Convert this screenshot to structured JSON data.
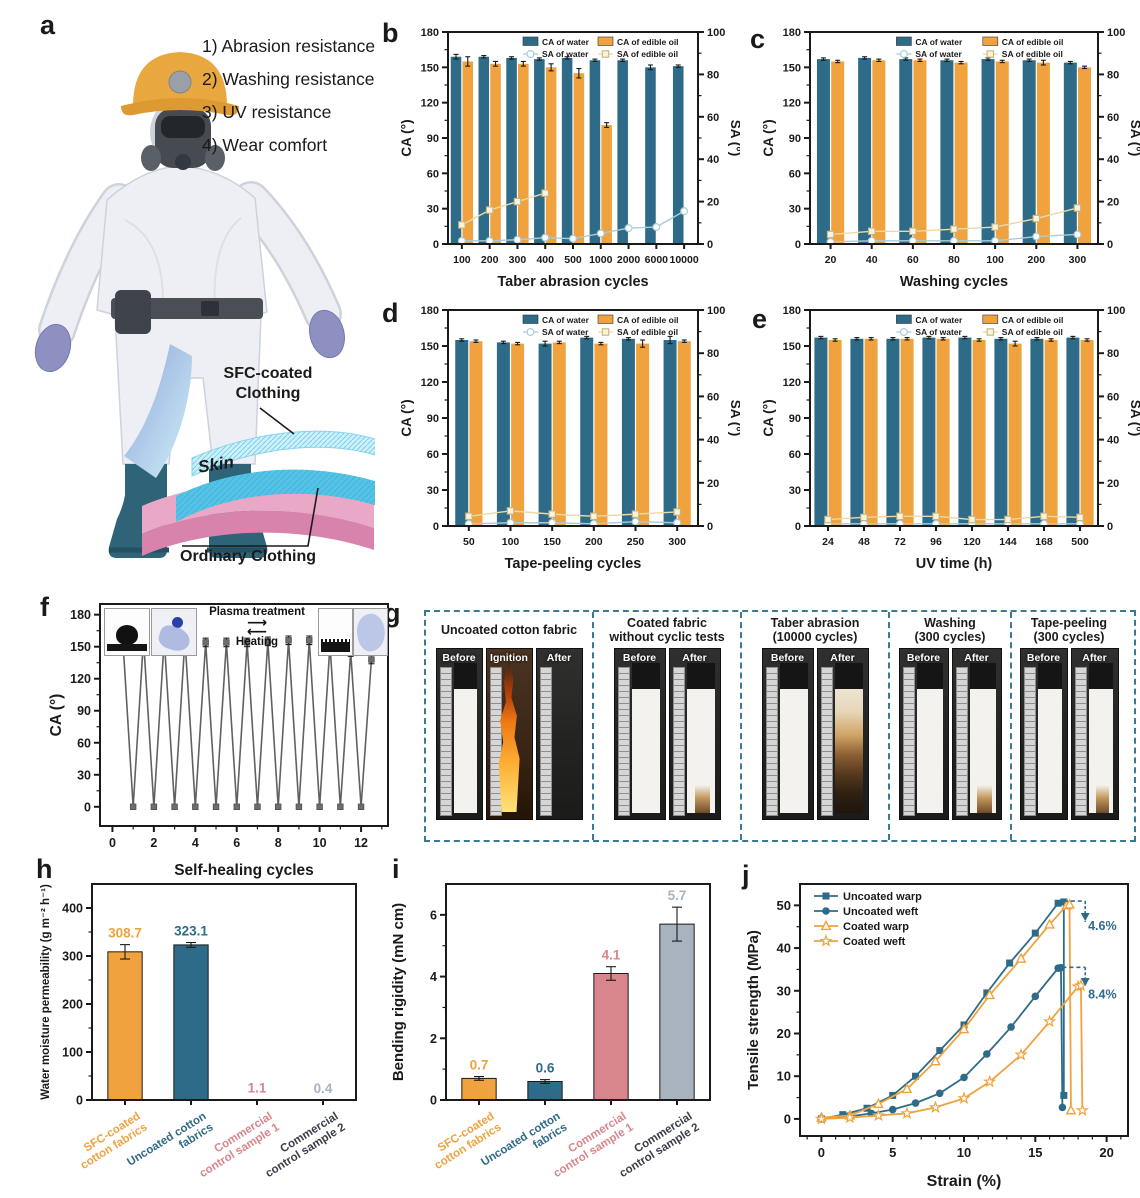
{
  "panel_letters": {
    "a": "a",
    "b": "b",
    "c": "c",
    "d": "d",
    "e": "e",
    "f": "f",
    "g": "g",
    "h": "h",
    "i": "i",
    "j": "j"
  },
  "palette": {
    "teal": "#2E6B88",
    "orange": "#EFA23E",
    "light_teal": "#A9CDD8",
    "pale_line": "#EBD9A9",
    "pale_fill": "#FAF3DC",
    "pale_stroke": "#C8B37E",
    "pink": "#D8868C",
    "gray": "#A9B2BF",
    "slate": "#3A3F48",
    "dark": "#1A1A1A",
    "f_line": "#616161",
    "f_marker": "#6E6E6E",
    "dashed_border": "#3A7A96"
  },
  "panel_a": {
    "requirements": [
      "1) Abrasion resistance",
      "2) Washing resistance",
      "3) UV resistance",
      "4) Wear comfort"
    ],
    "labels": {
      "sfc_line1": "SFC-coated",
      "sfc_line2": "Clothing",
      "skin": "Skin",
      "ordinary": "Ordinary Clothing"
    }
  },
  "panel_f_inset": {
    "top": "Plasma treatment",
    "bottom": "Heating"
  },
  "panel_g": {
    "groups": [
      {
        "title_lines": [
          "Uncoated cotton fabric"
        ],
        "photos": [
          {
            "label": "Before",
            "variant": "fabric-white"
          },
          {
            "label": "Ignition",
            "variant": "flame"
          },
          {
            "label": "After",
            "variant": "burned-empty"
          }
        ]
      },
      {
        "title_lines": [
          "Coated fabric",
          "without cyclic tests"
        ],
        "photos": [
          {
            "label": "Before",
            "variant": "fabric-white"
          },
          {
            "label": "After",
            "variant": "fabric-char"
          }
        ]
      },
      {
        "title_lines": [
          "Taber abrasion",
          "(10000 cycles)"
        ],
        "photos": [
          {
            "label": "Before",
            "variant": "fabric-white"
          },
          {
            "label": "After",
            "variant": "fabric-burnt"
          }
        ]
      },
      {
        "title_lines": [
          "Washing",
          "(300 cycles)"
        ],
        "photos": [
          {
            "label": "Before",
            "variant": "fabric-white"
          },
          {
            "label": "After",
            "variant": "fabric-char"
          }
        ]
      },
      {
        "title_lines": [
          "Tape-peeling",
          "(300 cycles)"
        ],
        "photos": [
          {
            "label": "Before",
            "variant": "fabric-white"
          },
          {
            "label": "After",
            "variant": "fabric-char"
          }
        ]
      }
    ]
  },
  "chart_data": [
    {
      "id": "b",
      "type": "bar",
      "subtype": "dual-axis-bar-line",
      "xlabel": "Taber abrasion cycles",
      "ylabel_left": "CA (°)",
      "ylabel_right": "SA (°)",
      "ylim_left": [
        0,
        180
      ],
      "yticks_left": [
        0,
        30,
        60,
        90,
        120,
        150,
        180
      ],
      "ylim_right": [
        0,
        100
      ],
      "yticks_right": [
        0,
        20,
        40,
        60,
        80,
        100
      ],
      "categories": [
        "100",
        "200",
        "300",
        "400",
        "500",
        "1000",
        "2000",
        "6000",
        "10000"
      ],
      "series_bars": [
        {
          "name": "CA of water",
          "color": "teal",
          "values": [
            159,
            159,
            158,
            157,
            158,
            156,
            156,
            150,
            151
          ],
          "err": [
            2,
            1,
            1,
            1,
            1,
            1,
            1,
            2,
            1
          ]
        },
        {
          "name": "CA of edible oil",
          "color": "orange",
          "values": [
            155,
            153,
            153,
            150,
            145,
            101,
            null,
            null,
            null
          ],
          "err": [
            4,
            2,
            2,
            3,
            4,
            2,
            null,
            null,
            null
          ]
        }
      ],
      "series_lines": [
        {
          "name": "SA of water",
          "color": "light_teal",
          "marker": "circle-open",
          "values": [
            1.5,
            1.5,
            2,
            3,
            2.5,
            5,
            7.5,
            8,
            15.5
          ]
        },
        {
          "name": "SA of edible oil",
          "color": "pale_line",
          "marker": "square-pale",
          "values": [
            9,
            16,
            20,
            24,
            null,
            null,
            null,
            null,
            null
          ]
        }
      ]
    },
    {
      "id": "c",
      "type": "bar",
      "subtype": "dual-axis-bar-line",
      "xlabel": "Washing cycles",
      "ylabel_left": "CA (°)",
      "ylabel_right": "SA (°)",
      "ylim_left": [
        0,
        180
      ],
      "yticks_left": [
        0,
        30,
        60,
        90,
        120,
        150,
        180
      ],
      "ylim_right": [
        0,
        100
      ],
      "yticks_right": [
        0,
        20,
        40,
        60,
        80,
        100
      ],
      "categories": [
        "20",
        "40",
        "60",
        "80",
        "100",
        "200",
        "300"
      ],
      "series_bars": [
        {
          "name": "CA of water",
          "color": "teal",
          "values": [
            157,
            158,
            157,
            156,
            157,
            156,
            154
          ],
          "err": [
            1,
            1,
            1,
            1,
            1,
            1,
            1
          ]
        },
        {
          "name": "CA of edible oil",
          "color": "orange",
          "values": [
            155,
            156,
            156,
            154,
            155,
            154,
            150
          ],
          "err": [
            1,
            1,
            1,
            1,
            1,
            2,
            1
          ]
        }
      ],
      "series_lines": [
        {
          "name": "SA of water",
          "color": "light_teal",
          "marker": "circle-open",
          "values": [
            1,
            1.5,
            1.5,
            1.5,
            1.5,
            3.5,
            4.5
          ]
        },
        {
          "name": "SA of edible oil",
          "color": "pale_line",
          "marker": "square-pale",
          "values": [
            4.5,
            6,
            6,
            7,
            8,
            12,
            17
          ]
        }
      ]
    },
    {
      "id": "d",
      "type": "bar",
      "subtype": "dual-axis-bar-line",
      "xlabel": "Tape-peeling cycles",
      "ylabel_left": "CA (°)",
      "ylabel_right": "SA (°)",
      "ylim_left": [
        0,
        180
      ],
      "yticks_left": [
        0,
        30,
        60,
        90,
        120,
        150,
        180
      ],
      "ylim_right": [
        0,
        100
      ],
      "yticks_right": [
        0,
        20,
        40,
        60,
        80,
        100
      ],
      "categories": [
        "50",
        "100",
        "150",
        "200",
        "250",
        "300"
      ],
      "series_bars": [
        {
          "name": "CA of water",
          "color": "teal",
          "values": [
            155,
            153,
            152,
            157,
            156,
            155
          ],
          "err": [
            1,
            1,
            2,
            1,
            1,
            3
          ]
        },
        {
          "name": "CA of edible oil",
          "color": "orange",
          "values": [
            154,
            152,
            153,
            152,
            152,
            154
          ],
          "err": [
            1,
            1,
            1,
            1,
            3,
            1
          ]
        }
      ],
      "series_lines": [
        {
          "name": "SA of water",
          "color": "light_teal",
          "marker": "circle-open",
          "values": [
            1,
            1.5,
            1.5,
            1,
            2,
            1.5
          ]
        },
        {
          "name": "SA of edible oil",
          "color": "pale_line",
          "marker": "square-pale",
          "values": [
            4.5,
            7,
            5.5,
            4.5,
            5.5,
            6.5
          ]
        }
      ]
    },
    {
      "id": "e",
      "type": "bar",
      "subtype": "dual-axis-bar-line",
      "xlabel": "UV time (h)",
      "ylabel_left": "CA (°)",
      "ylabel_right": "SA (°)",
      "ylim_left": [
        0,
        180
      ],
      "yticks_left": [
        0,
        30,
        60,
        90,
        120,
        150,
        180
      ],
      "ylim_right": [
        0,
        100
      ],
      "yticks_right": [
        0,
        20,
        40,
        60,
        80,
        100
      ],
      "categories": [
        "24",
        "48",
        "72",
        "96",
        "120",
        "144",
        "168",
        "500"
      ],
      "series_bars": [
        {
          "name": "CA of water",
          "color": "teal",
          "values": [
            157,
            156,
            156,
            157,
            157,
            156,
            156,
            157
          ],
          "err": [
            1,
            1,
            1,
            1,
            1,
            1,
            1,
            1
          ]
        },
        {
          "name": "CA of edible oil",
          "color": "orange",
          "values": [
            155,
            156,
            156,
            156,
            155,
            152,
            155,
            155
          ],
          "err": [
            1,
            1,
            1,
            1,
            1,
            2,
            1,
            1
          ]
        }
      ],
      "series_lines": [
        {
          "name": "SA of water",
          "color": "light_teal",
          "marker": "circle-open",
          "values": [
            1,
            1,
            1,
            1,
            1,
            1,
            1,
            1
          ]
        },
        {
          "name": "SA of edible oil",
          "color": "pale_line",
          "marker": "square-pale",
          "values": [
            3,
            4,
            4.5,
            4.5,
            3,
            3,
            4.5,
            4
          ]
        }
      ]
    },
    {
      "id": "f",
      "type": "line",
      "subtype": "self-healing-zigzag",
      "xlabel": "Self-healing cycles",
      "ylabel": "CA (°)",
      "xlim": [
        -0.6,
        13.3
      ],
      "xticks": [
        0,
        2,
        4,
        6,
        8,
        10,
        12
      ],
      "ylim": [
        -18,
        190
      ],
      "yticks": [
        0,
        30,
        60,
        90,
        120,
        150,
        180
      ],
      "high_x_offset": 0.5,
      "highs": [
        157,
        157,
        157,
        157,
        154,
        154,
        154,
        155,
        156,
        156,
        152,
        145,
        138
      ],
      "low_value": 0,
      "err": 4
    },
    {
      "id": "h",
      "type": "bar",
      "subtype": "category-bar",
      "ylabel": "Water moisture permeability (g m⁻² h⁻¹)",
      "ylim": [
        0,
        450
      ],
      "yticks": [
        0,
        100,
        200,
        300,
        400
      ],
      "yminors": [
        50,
        150,
        250,
        350
      ],
      "categories": [
        [
          "SFC-coated",
          "cotton fabrics"
        ],
        [
          "Uncoated cotton",
          "fabrics"
        ],
        [
          "Commercial",
          "control sample 1"
        ],
        [
          "Commercial",
          "control sample 2"
        ]
      ],
      "values": [
        308.7,
        323.1,
        1.1,
        0.4
      ],
      "errors": [
        15,
        5,
        0,
        0
      ],
      "value_labels": [
        "308.7",
        "323.1",
        "1.1",
        "0.4"
      ],
      "bar_colors": [
        "orange",
        "teal",
        "pink",
        "gray"
      ],
      "value_label_colors": [
        "orange",
        "teal",
        "pink",
        "gray"
      ],
      "cat_label_colors": [
        "orange",
        "teal",
        "pink",
        "slate"
      ]
    },
    {
      "id": "i",
      "type": "bar",
      "subtype": "category-bar",
      "ylabel": "Bending rigidity (mN cm)",
      "ylim": [
        0,
        7
      ],
      "yticks": [
        0,
        2,
        4,
        6
      ],
      "yminors": [
        1,
        3,
        5
      ],
      "categories": [
        [
          "SFC-coated",
          "cotton fabrics"
        ],
        [
          "Uncoated cotton",
          "fabrics"
        ],
        [
          "Commercial",
          "control sample 1"
        ],
        [
          "Commercial",
          "control sample 2"
        ]
      ],
      "values": [
        0.7,
        0.6,
        4.1,
        5.7
      ],
      "errors": [
        0.06,
        0.06,
        0.22,
        0.55
      ],
      "value_labels": [
        "0.7",
        "0.6",
        "4.1",
        "5.7"
      ],
      "bar_colors": [
        "orange",
        "teal",
        "pink",
        "gray"
      ],
      "value_label_colors": [
        "orange",
        "teal",
        "pink",
        "gray"
      ],
      "cat_label_colors": [
        "orange",
        "teal",
        "pink",
        "slate"
      ]
    },
    {
      "id": "j",
      "type": "line",
      "subtype": "multi-line",
      "xlabel": "Strain (%)",
      "ylabel": "Tensile strength (MPa)",
      "xlim": [
        -1.5,
        21.5
      ],
      "xticks": [
        0,
        5,
        10,
        15,
        20
      ],
      "ylim": [
        -4,
        55
      ],
      "yticks": [
        0,
        10,
        20,
        30,
        40,
        50
      ],
      "series": [
        {
          "name": "Uncoated warp",
          "color": "teal",
          "marker": "square",
          "points": [
            [
              0,
              0
            ],
            [
              1.5,
              1
            ],
            [
              3.2,
              2.5
            ],
            [
              5,
              5.5
            ],
            [
              6.6,
              10
            ],
            [
              8.3,
              16
            ],
            [
              10,
              22
            ],
            [
              11.6,
              29.5
            ],
            [
              13.2,
              36.5
            ],
            [
              15,
              43.5
            ],
            [
              16.6,
              50.5
            ],
            [
              17,
              50.8
            ],
            [
              17,
              5.5
            ]
          ]
        },
        {
          "name": "Uncoated weft",
          "color": "teal",
          "marker": "circle",
          "points": [
            [
              0,
              0
            ],
            [
              2,
              0.6
            ],
            [
              3.5,
              1.3
            ],
            [
              5,
              2.2
            ],
            [
              6.6,
              3.7
            ],
            [
              8.3,
              6
            ],
            [
              10,
              9.7
            ],
            [
              11.6,
              15.2
            ],
            [
              13.3,
              21.5
            ],
            [
              15,
              28.7
            ],
            [
              16.6,
              35.3
            ],
            [
              16.8,
              35.4
            ],
            [
              16.9,
              2.7
            ]
          ]
        },
        {
          "name": "Coated warp",
          "color": "orange",
          "marker": "triangle-open",
          "points": [
            [
              0,
              0.3
            ],
            [
              2,
              0.8
            ],
            [
              4,
              3.5
            ],
            [
              6,
              7
            ],
            [
              8,
              13.5
            ],
            [
              10,
              21
            ],
            [
              11.8,
              29
            ],
            [
              14,
              37.5
            ],
            [
              16,
              45.5
            ],
            [
              17.2,
              50
            ],
            [
              17.4,
              50.2
            ],
            [
              17.5,
              2
            ]
          ]
        },
        {
          "name": "Coated weft",
          "color": "orange",
          "marker": "star-open",
          "points": [
            [
              0,
              0
            ],
            [
              2,
              0.3
            ],
            [
              4,
              0.8
            ],
            [
              6,
              1.3
            ],
            [
              8,
              2.7
            ],
            [
              10,
              4.8
            ],
            [
              11.8,
              8.7
            ],
            [
              14,
              15
            ],
            [
              16,
              22.8
            ],
            [
              18,
              31
            ],
            [
              18.2,
              31.2
            ],
            [
              18.3,
              2
            ]
          ]
        }
      ],
      "annotations": [
        {
          "text": "4.6%",
          "text_x": 18.7,
          "text_y": 44.2,
          "dash_x1": 17.0,
          "dash_x2": 18.5,
          "dash_y": 51,
          "tri_x": 18.5,
          "tri_y": 47.5
        },
        {
          "text": "8.4%",
          "text_x": 18.7,
          "text_y": 28.2,
          "dash_x1": 16.9,
          "dash_x2": 18.5,
          "dash_y": 35.5,
          "tri_x": 18.5,
          "tri_y": 32.3
        }
      ]
    }
  ]
}
